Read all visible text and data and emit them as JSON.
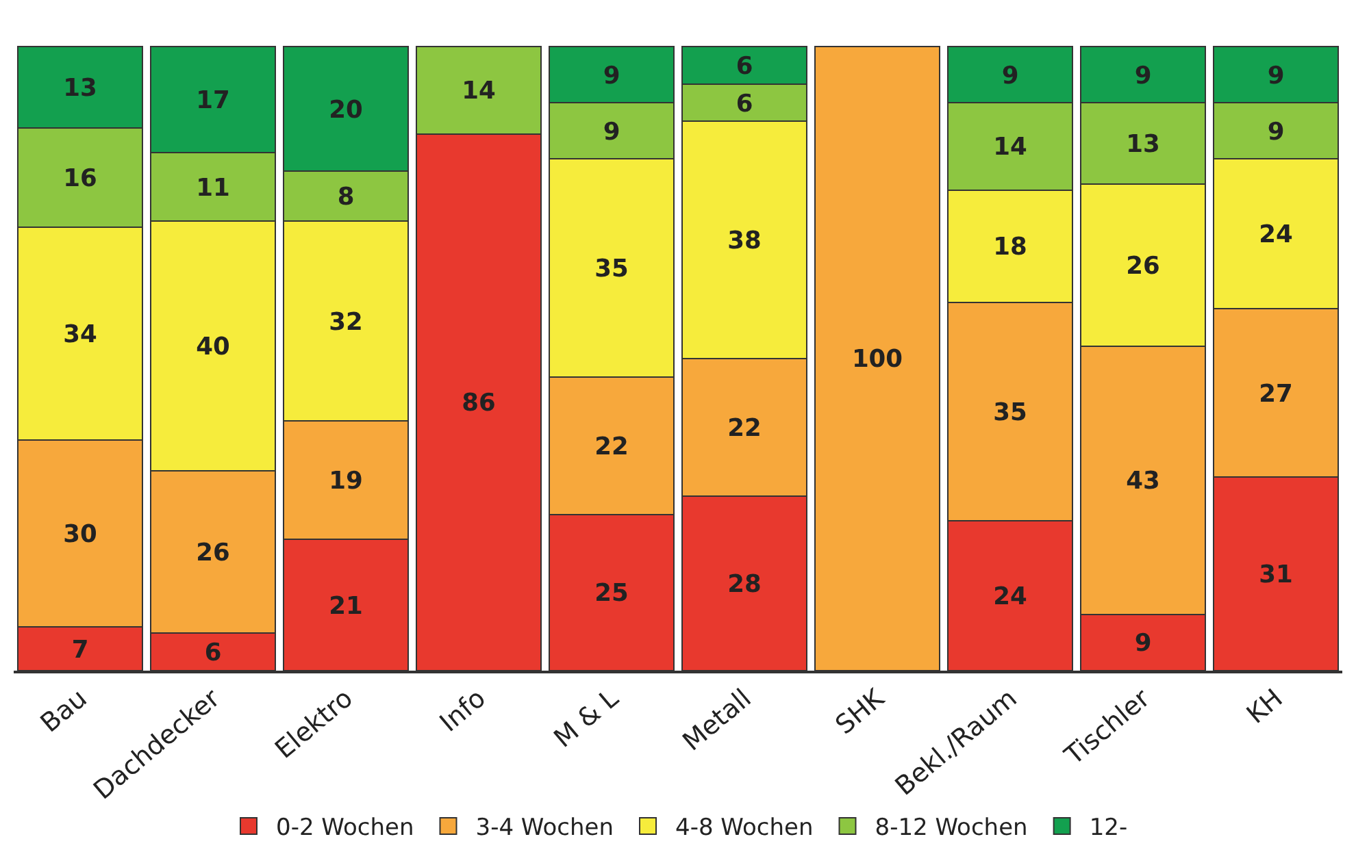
{
  "chart_data": {
    "type": "bar",
    "stacked": true,
    "data_labels": true,
    "legend": "bottom",
    "categories": [
      "Bau",
      "Dachdecker",
      "Elektro",
      "Info",
      "M & L",
      "Metall",
      "SHK",
      "Bekl./Raum",
      "Tischler",
      "KH"
    ],
    "series": [
      {
        "name": "0-2 Wochen",
        "color": "#e8392e",
        "values": [
          7,
          6,
          21,
          86,
          25,
          28,
          null,
          24,
          9,
          31
        ]
      },
      {
        "name": "3-4 Wochen",
        "color": "#f7a83c",
        "values": [
          30,
          26,
          19,
          null,
          22,
          22,
          100,
          35,
          43,
          27
        ]
      },
      {
        "name": "4-8 Wochen",
        "color": "#f6ec3c",
        "values": [
          34,
          40,
          32,
          null,
          35,
          38,
          null,
          18,
          26,
          24
        ]
      },
      {
        "name": "8-12 Wochen",
        "color": "#8dc641",
        "values": [
          16,
          11,
          8,
          14,
          9,
          6,
          null,
          14,
          13,
          9
        ]
      },
      {
        "name": "12-",
        "color": "#13a04f",
        "values": [
          13,
          17,
          20,
          null,
          9,
          6,
          null,
          9,
          9,
          9
        ]
      }
    ]
  }
}
